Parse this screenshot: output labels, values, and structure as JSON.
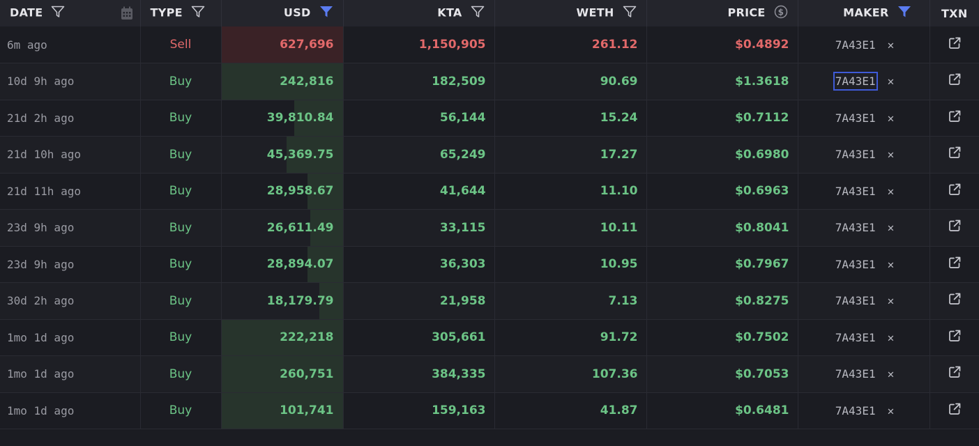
{
  "header": {
    "date": "DATE",
    "type": "TYPE",
    "usd": "USD",
    "kta": "KTA",
    "weth": "WETH",
    "price": "PRICE",
    "maker": "MAKER",
    "txn": "TXN"
  },
  "colors": {
    "buy": "#6cc486",
    "sell": "#e2696a",
    "filter_active": "#5b7cf0",
    "buy_bar": "#27342c",
    "sell_bar": "#3a2226"
  },
  "rows": [
    {
      "date": "6m ago",
      "type": "Sell",
      "usd": "627,696",
      "kta": "1,150,905",
      "weth": "261.12",
      "price": "$0.4892",
      "maker": "7A43E1",
      "usd_fill": 1.0
    },
    {
      "date": "10d 9h ago",
      "type": "Buy",
      "usd": "242,816",
      "kta": "182,509",
      "weth": "90.69",
      "price": "$1.3618",
      "maker": "7A43E1",
      "usd_fill": 1.0
    },
    {
      "date": "21d 2h ago",
      "type": "Buy",
      "usd": "39,810.84",
      "kta": "56,144",
      "weth": "15.24",
      "price": "$0.7112",
      "maker": "7A43E1",
      "usd_fill": 0.4
    },
    {
      "date": "21d 10h ago",
      "type": "Buy",
      "usd": "45,369.75",
      "kta": "65,249",
      "weth": "17.27",
      "price": "$0.6980",
      "maker": "7A43E1",
      "usd_fill": 0.46
    },
    {
      "date": "21d 11h ago",
      "type": "Buy",
      "usd": "28,958.67",
      "kta": "41,644",
      "weth": "11.10",
      "price": "$0.6963",
      "maker": "7A43E1",
      "usd_fill": 0.29
    },
    {
      "date": "23d 9h ago",
      "type": "Buy",
      "usd": "26,611.49",
      "kta": "33,115",
      "weth": "10.11",
      "price": "$0.8041",
      "maker": "7A43E1",
      "usd_fill": 0.27
    },
    {
      "date": "23d 9h ago",
      "type": "Buy",
      "usd": "28,894.07",
      "kta": "36,303",
      "weth": "10.95",
      "price": "$0.7967",
      "maker": "7A43E1",
      "usd_fill": 0.29
    },
    {
      "date": "30d 2h ago",
      "type": "Buy",
      "usd": "18,179.79",
      "kta": "21,958",
      "weth": "7.13",
      "price": "$0.8275",
      "maker": "7A43E1",
      "usd_fill": 0.19
    },
    {
      "date": "1mo 1d ago",
      "type": "Buy",
      "usd": "222,218",
      "kta": "305,661",
      "weth": "91.72",
      "price": "$0.7502",
      "maker": "7A43E1",
      "usd_fill": 1.0
    },
    {
      "date": "1mo 1d ago",
      "type": "Buy",
      "usd": "260,751",
      "kta": "384,335",
      "weth": "107.36",
      "price": "$0.7053",
      "maker": "7A43E1",
      "usd_fill": 1.0
    },
    {
      "date": "1mo 1d ago",
      "type": "Buy",
      "usd": "101,741",
      "kta": "159,163",
      "weth": "41.87",
      "price": "$0.6481",
      "maker": "7A43E1",
      "usd_fill": 1.0
    }
  ],
  "selected_maker_row": 1
}
